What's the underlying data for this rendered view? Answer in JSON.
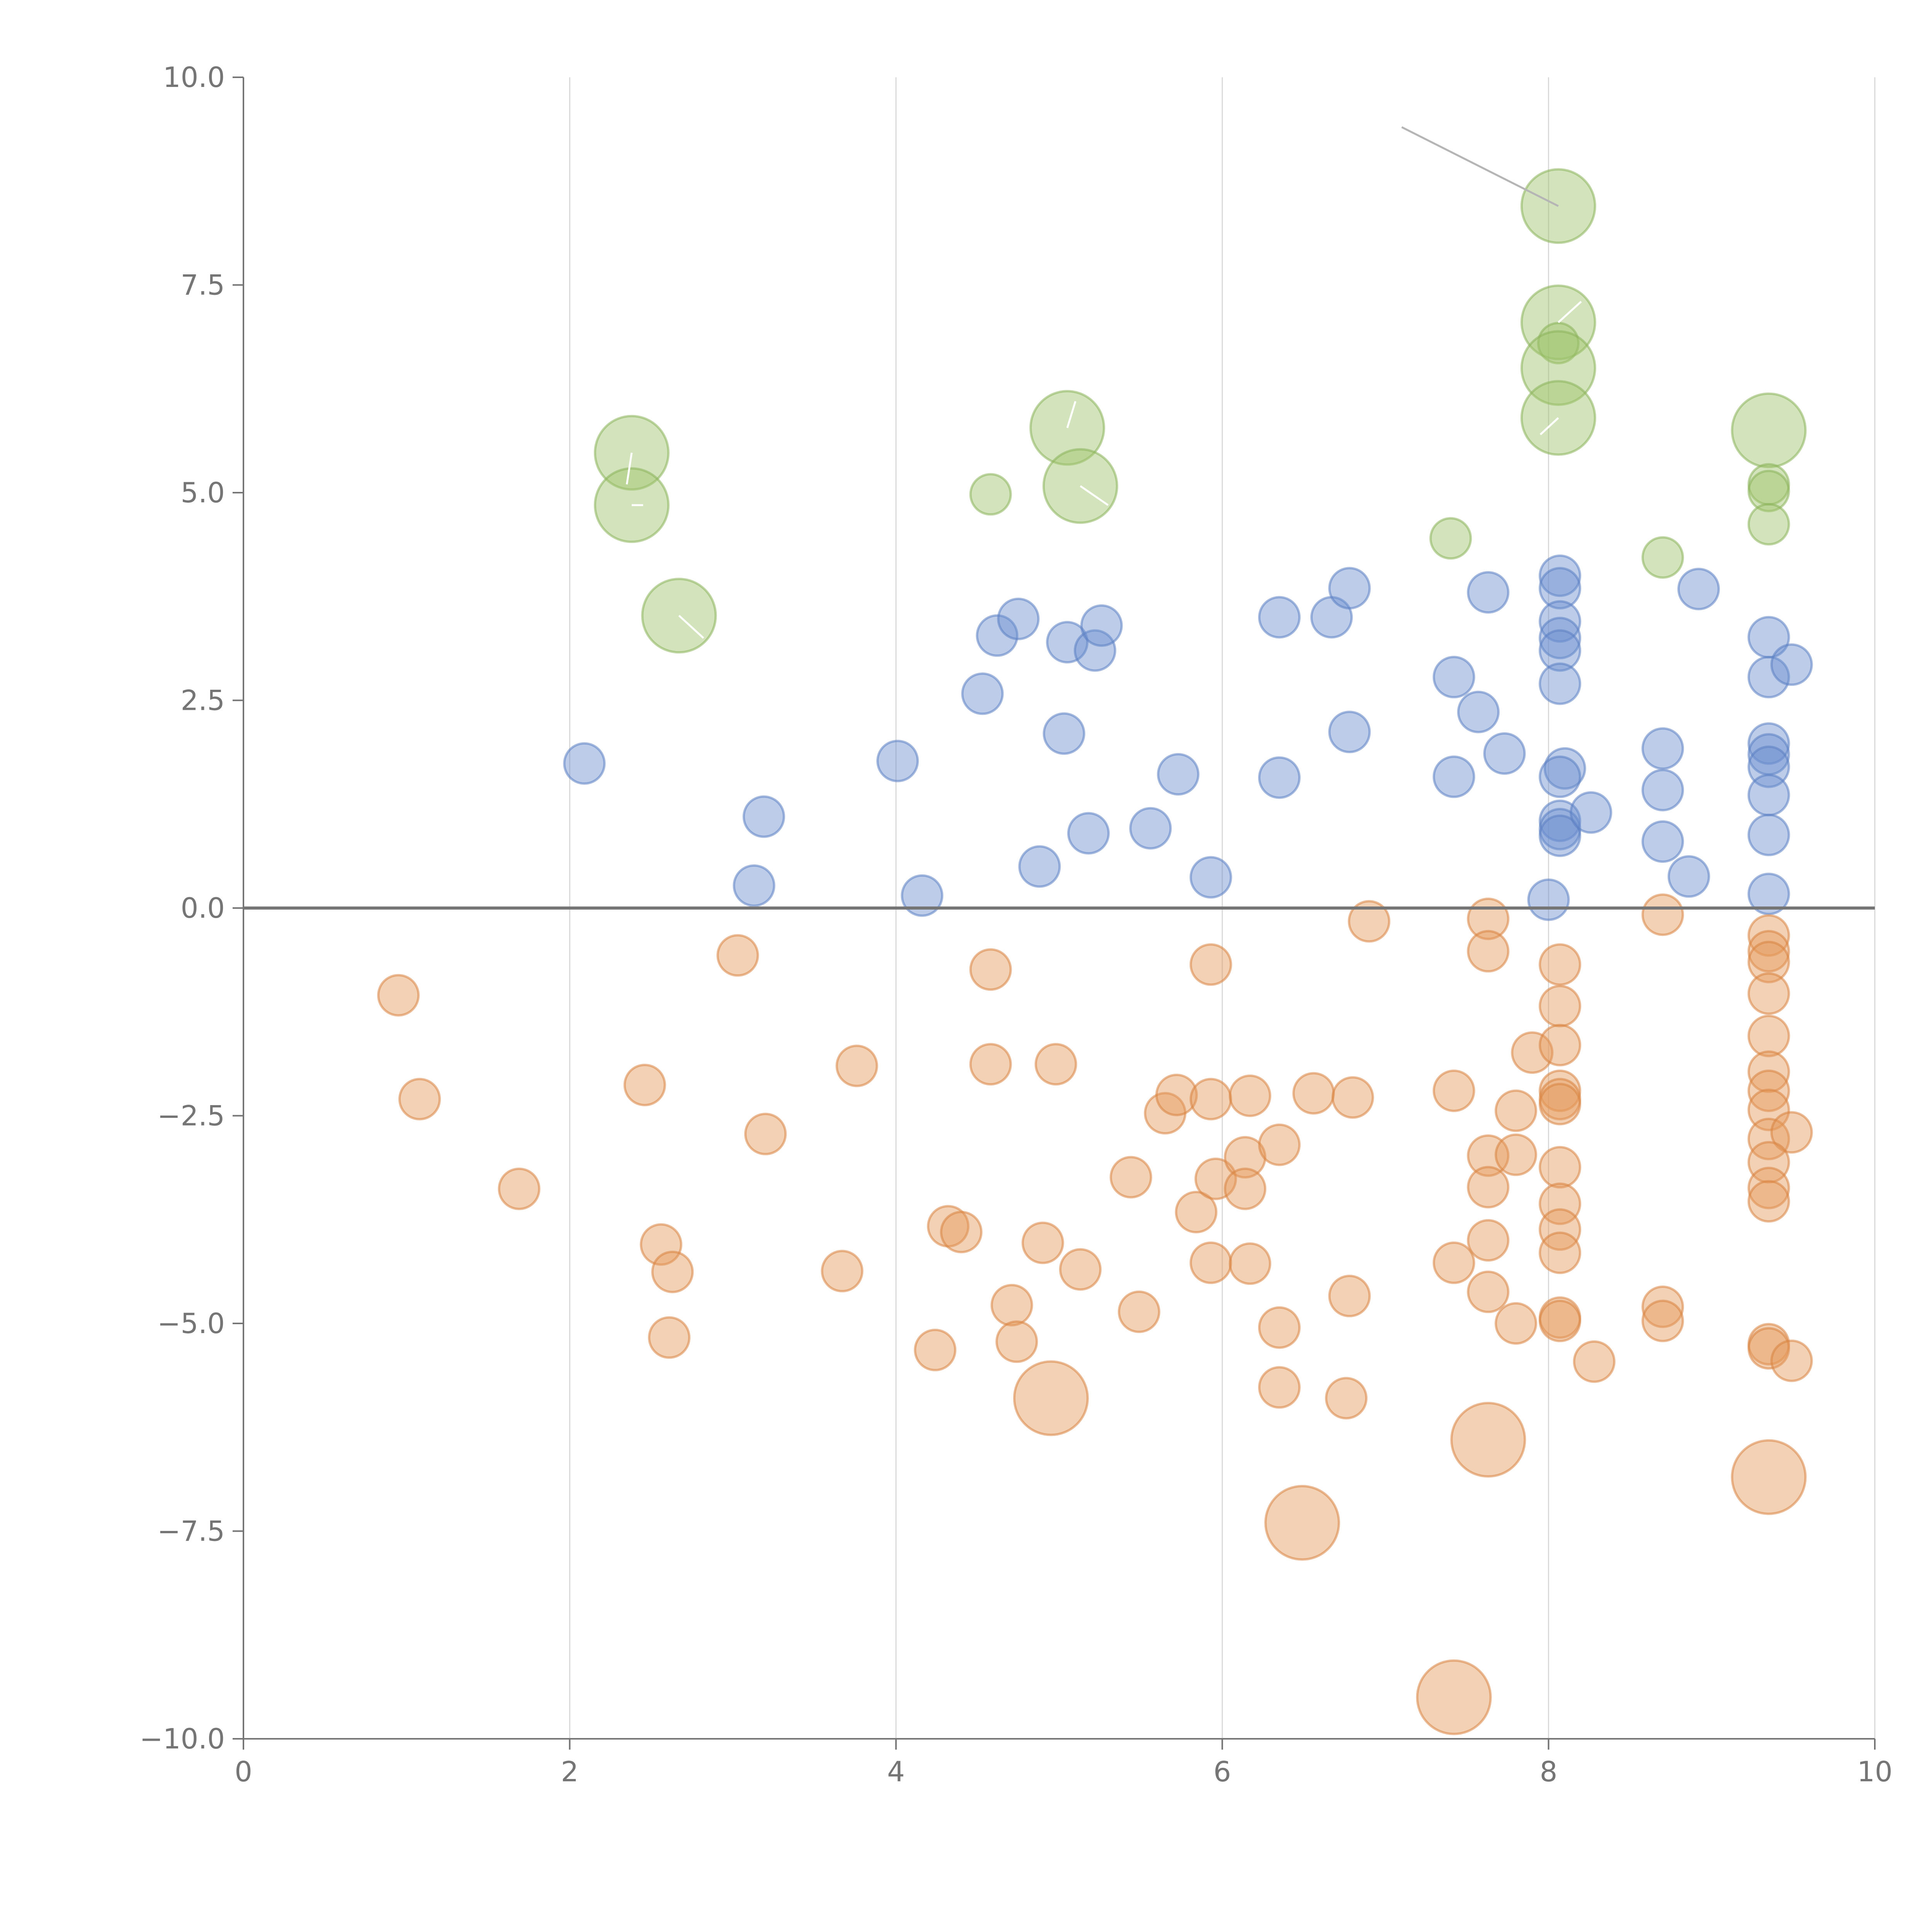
{
  "chart_data": {
    "type": "scatter",
    "title": "",
    "xlabel": "",
    "ylabel": "",
    "xlim": [
      0,
      10
    ],
    "ylim": [
      -10,
      10
    ],
    "x_ticks": [
      "0",
      "2",
      "4",
      "6",
      "8",
      "10"
    ],
    "y_ticks": [
      "10.0",
      "7.5",
      "5.0",
      "2.5",
      "0.0",
      "−2.5",
      "−5.0",
      "−7.5",
      "−10.0"
    ],
    "x_tick_values": [
      0,
      2,
      4,
      6,
      8,
      10
    ],
    "y_tick_values": [
      10,
      7.5,
      5,
      2.5,
      0,
      -2.5,
      -5,
      -7.5,
      -10
    ],
    "grid": "vertical",
    "reference_line_y": 0,
    "colors": {
      "green": "#9dc46b",
      "green_stroke": "#8ab35a",
      "blue": "#6b8fcf",
      "blue_stroke": "#5b7fc2",
      "orange": "#e59a5c",
      "orange_stroke": "#d9843f",
      "leader_gray": "#b5b5b5",
      "leader_white": "#ffffff"
    },
    "series": [
      {
        "name": "green",
        "color_key": "green",
        "points": [
          {
            "x": 8.06,
            "y": 8.45,
            "size": "large",
            "leader_to": [
              7.1,
              9.4
            ],
            "leader_color": "leader_gray"
          },
          {
            "x": 8.06,
            "y": 7.05,
            "size": "large",
            "leader_to": [
              8.2,
              7.3
            ],
            "leader_color": "leader_white"
          },
          {
            "x": 8.06,
            "y": 6.8,
            "size": "small"
          },
          {
            "x": 8.06,
            "y": 6.5,
            "size": "large"
          },
          {
            "x": 8.06,
            "y": 5.9,
            "size": "large",
            "leader_to": [
              7.95,
              5.7
            ],
            "leader_color": "leader_white"
          },
          {
            "x": 2.38,
            "y": 5.48,
            "size": "large",
            "leader_to": [
              2.35,
              5.1
            ],
            "leader_color": "leader_white"
          },
          {
            "x": 2.38,
            "y": 4.85,
            "size": "large",
            "leader_to": [
              2.45,
              4.85
            ],
            "leader_color": "leader_white"
          },
          {
            "x": 2.67,
            "y": 3.52,
            "size": "large",
            "leader_to": [
              2.82,
              3.25
            ],
            "leader_color": "leader_white"
          },
          {
            "x": 5.05,
            "y": 5.78,
            "size": "large",
            "leader_to": [
              5.1,
              6.1
            ],
            "leader_color": "leader_white"
          },
          {
            "x": 5.13,
            "y": 5.08,
            "size": "large",
            "leader_to": [
              5.3,
              4.85
            ],
            "leader_color": "leader_white"
          },
          {
            "x": 4.58,
            "y": 4.98,
            "size": "small"
          },
          {
            "x": 9.35,
            "y": 5.75,
            "size": "large"
          },
          {
            "x": 9.35,
            "y": 5.1,
            "size": "small"
          },
          {
            "x": 9.35,
            "y": 5.02,
            "size": "small"
          },
          {
            "x": 9.35,
            "y": 4.62,
            "size": "small"
          },
          {
            "x": 7.4,
            "y": 4.45,
            "size": "small"
          },
          {
            "x": 8.7,
            "y": 4.22,
            "size": "small"
          }
        ]
      },
      {
        "name": "blue",
        "color_key": "blue",
        "points": [
          {
            "x": 2.09,
            "y": 1.74
          },
          {
            "x": 3.19,
            "y": 1.1
          },
          {
            "x": 3.13,
            "y": 0.27
          },
          {
            "x": 4.01,
            "y": 1.77
          },
          {
            "x": 4.16,
            "y": 0.15
          },
          {
            "x": 4.53,
            "y": 2.58
          },
          {
            "x": 4.62,
            "y": 3.28
          },
          {
            "x": 4.75,
            "y": 3.48
          },
          {
            "x": 4.88,
            "y": 0.5
          },
          {
            "x": 5.03,
            "y": 2.1
          },
          {
            "x": 5.05,
            "y": 3.2
          },
          {
            "x": 5.18,
            "y": 0.9
          },
          {
            "x": 5.22,
            "y": 3.1
          },
          {
            "x": 5.26,
            "y": 3.4
          },
          {
            "x": 5.56,
            "y": 0.96
          },
          {
            "x": 5.73,
            "y": 1.61
          },
          {
            "x": 5.93,
            "y": 0.37
          },
          {
            "x": 6.35,
            "y": 3.5
          },
          {
            "x": 6.35,
            "y": 1.57
          },
          {
            "x": 6.67,
            "y": 3.5
          },
          {
            "x": 6.78,
            "y": 3.85
          },
          {
            "x": 6.78,
            "y": 2.12
          },
          {
            "x": 7.42,
            "y": 2.78
          },
          {
            "x": 7.42,
            "y": 1.58
          },
          {
            "x": 7.57,
            "y": 2.36
          },
          {
            "x": 7.63,
            "y": 3.8
          },
          {
            "x": 7.73,
            "y": 1.86
          },
          {
            "x": 8.0,
            "y": 0.1
          },
          {
            "x": 8.07,
            "y": 4.0
          },
          {
            "x": 8.07,
            "y": 3.85
          },
          {
            "x": 8.07,
            "y": 3.45
          },
          {
            "x": 8.07,
            "y": 3.25
          },
          {
            "x": 8.07,
            "y": 3.1
          },
          {
            "x": 8.07,
            "y": 2.7
          },
          {
            "x": 8.1,
            "y": 1.68
          },
          {
            "x": 8.07,
            "y": 1.58
          },
          {
            "x": 8.07,
            "y": 1.05
          },
          {
            "x": 8.07,
            "y": 0.95
          },
          {
            "x": 8.07,
            "y": 0.87
          },
          {
            "x": 8.26,
            "y": 1.15
          },
          {
            "x": 8.7,
            "y": 1.92
          },
          {
            "x": 8.7,
            "y": 1.42
          },
          {
            "x": 8.7,
            "y": 0.8
          },
          {
            "x": 8.86,
            "y": 0.38
          },
          {
            "x": 8.92,
            "y": 3.84
          },
          {
            "x": 9.35,
            "y": 3.26
          },
          {
            "x": 9.35,
            "y": 2.78
          },
          {
            "x": 9.49,
            "y": 2.93
          },
          {
            "x": 9.35,
            "y": 1.98
          },
          {
            "x": 9.35,
            "y": 1.85
          },
          {
            "x": 9.35,
            "y": 1.7
          },
          {
            "x": 9.35,
            "y": 1.36
          },
          {
            "x": 9.35,
            "y": 0.88
          },
          {
            "x": 9.35,
            "y": 0.17
          }
        ]
      },
      {
        "name": "orange",
        "color_key": "orange",
        "points": [
          {
            "x": 0.95,
            "y": -1.05
          },
          {
            "x": 1.08,
            "y": -2.3
          },
          {
            "x": 1.69,
            "y": -3.38
          },
          {
            "x": 2.46,
            "y": -2.13
          },
          {
            "x": 2.56,
            "y": -4.05
          },
          {
            "x": 2.63,
            "y": -4.38
          },
          {
            "x": 2.61,
            "y": -5.17
          },
          {
            "x": 3.03,
            "y": -0.57
          },
          {
            "x": 3.2,
            "y": -2.72
          },
          {
            "x": 3.67,
            "y": -4.37
          },
          {
            "x": 3.76,
            "y": -1.9
          },
          {
            "x": 4.24,
            "y": -5.32
          },
          {
            "x": 4.32,
            "y": -3.83
          },
          {
            "x": 4.4,
            "y": -3.9
          },
          {
            "x": 4.58,
            "y": -0.74
          },
          {
            "x": 4.58,
            "y": -1.88
          },
          {
            "x": 4.71,
            "y": -4.78
          },
          {
            "x": 4.74,
            "y": -5.22
          },
          {
            "x": 4.9,
            "y": -4.03
          },
          {
            "x": 4.98,
            "y": -1.88
          },
          {
            "x": 4.95,
            "y": -5.9,
            "size": "large"
          },
          {
            "x": 5.13,
            "y": -4.35
          },
          {
            "x": 5.44,
            "y": -3.24
          },
          {
            "x": 5.49,
            "y": -4.86
          },
          {
            "x": 5.65,
            "y": -2.47
          },
          {
            "x": 5.72,
            "y": -2.25
          },
          {
            "x": 5.84,
            "y": -3.66
          },
          {
            "x": 5.93,
            "y": -0.68
          },
          {
            "x": 5.93,
            "y": -2.3
          },
          {
            "x": 5.96,
            "y": -3.26
          },
          {
            "x": 5.93,
            "y": -4.27
          },
          {
            "x": 6.14,
            "y": -3.0
          },
          {
            "x": 6.14,
            "y": -3.38
          },
          {
            "x": 6.17,
            "y": -2.26
          },
          {
            "x": 6.17,
            "y": -4.28
          },
          {
            "x": 6.35,
            "y": -2.85
          },
          {
            "x": 6.35,
            "y": -5.05
          },
          {
            "x": 6.35,
            "y": -5.77
          },
          {
            "x": 6.49,
            "y": -7.4,
            "size": "large"
          },
          {
            "x": 6.56,
            "y": -2.23
          },
          {
            "x": 6.76,
            "y": -5.9
          },
          {
            "x": 6.78,
            "y": -4.67
          },
          {
            "x": 6.8,
            "y": -2.28
          },
          {
            "x": 6.9,
            "y": -0.16
          },
          {
            "x": 7.42,
            "y": -2.2
          },
          {
            "x": 7.42,
            "y": -4.27
          },
          {
            "x": 7.42,
            "y": -9.5,
            "size": "large"
          },
          {
            "x": 7.63,
            "y": -0.13
          },
          {
            "x": 7.63,
            "y": -0.52
          },
          {
            "x": 7.63,
            "y": -2.98
          },
          {
            "x": 7.63,
            "y": -3.36
          },
          {
            "x": 7.63,
            "y": -4.0
          },
          {
            "x": 7.63,
            "y": -4.62
          },
          {
            "x": 7.63,
            "y": -6.4,
            "size": "large"
          },
          {
            "x": 7.8,
            "y": -2.44
          },
          {
            "x": 7.8,
            "y": -2.97
          },
          {
            "x": 7.8,
            "y": -5.0
          },
          {
            "x": 7.9,
            "y": -1.74
          },
          {
            "x": 8.07,
            "y": -0.68
          },
          {
            "x": 8.07,
            "y": -1.18
          },
          {
            "x": 8.07,
            "y": -1.65
          },
          {
            "x": 8.07,
            "y": -2.2
          },
          {
            "x": 8.07,
            "y": -2.3
          },
          {
            "x": 8.07,
            "y": -2.36
          },
          {
            "x": 8.07,
            "y": -3.12
          },
          {
            "x": 8.07,
            "y": -3.56
          },
          {
            "x": 8.07,
            "y": -3.87
          },
          {
            "x": 8.07,
            "y": -4.15
          },
          {
            "x": 8.07,
            "y": -4.93
          },
          {
            "x": 8.07,
            "y": -4.97
          },
          {
            "x": 8.28,
            "y": -5.46
          },
          {
            "x": 8.7,
            "y": -0.08
          },
          {
            "x": 8.7,
            "y": -4.8
          },
          {
            "x": 8.7,
            "y": -4.97
          },
          {
            "x": 9.35,
            "y": -0.33
          },
          {
            "x": 9.35,
            "y": -0.52
          },
          {
            "x": 9.35,
            "y": -0.65
          },
          {
            "x": 9.35,
            "y": -1.03
          },
          {
            "x": 9.35,
            "y": -1.54
          },
          {
            "x": 9.35,
            "y": -1.97
          },
          {
            "x": 9.35,
            "y": -2.2
          },
          {
            "x": 9.35,
            "y": -2.43
          },
          {
            "x": 9.35,
            "y": -2.78
          },
          {
            "x": 9.49,
            "y": -2.7
          },
          {
            "x": 9.35,
            "y": -3.06
          },
          {
            "x": 9.35,
            "y": -3.37
          },
          {
            "x": 9.35,
            "y": -3.53
          },
          {
            "x": 9.35,
            "y": -5.25
          },
          {
            "x": 9.35,
            "y": -5.3
          },
          {
            "x": 9.49,
            "y": -5.45
          },
          {
            "x": 9.35,
            "y": -6.85,
            "size": "large"
          }
        ]
      }
    ]
  }
}
